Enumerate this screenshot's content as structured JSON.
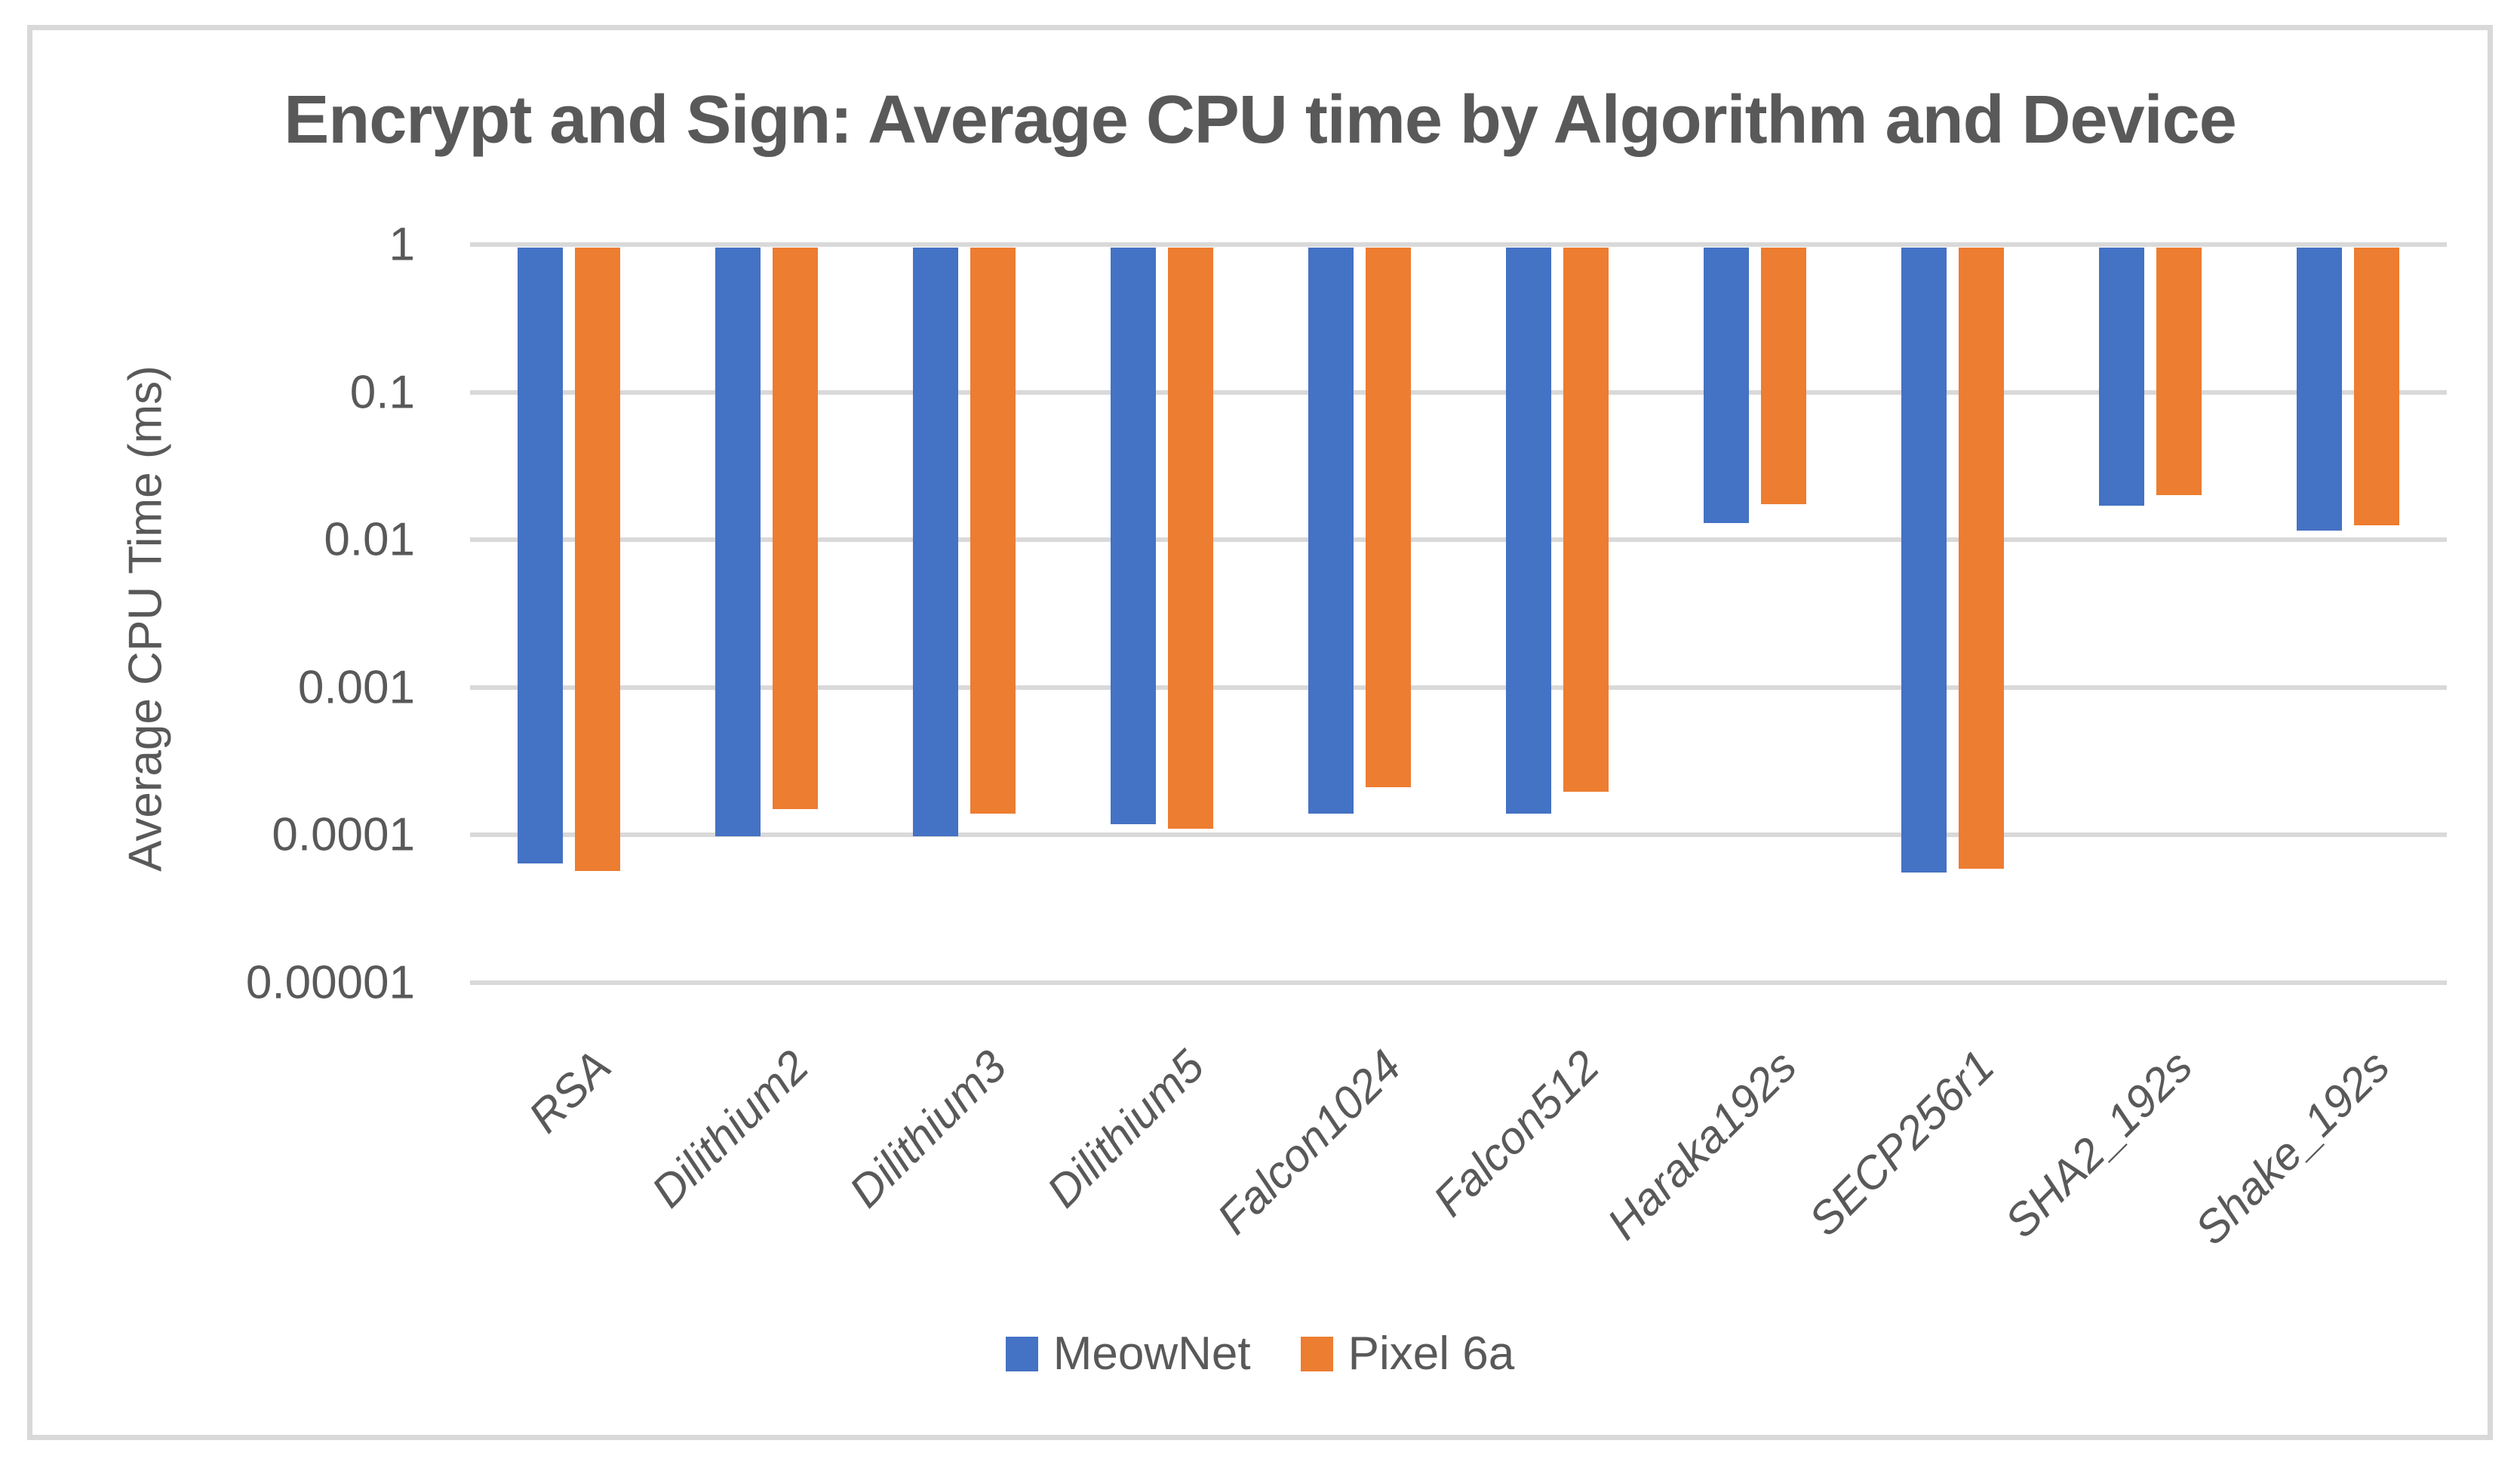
{
  "title": "Encrypt and Sign: Average CPU time by Algorithm and Device",
  "y_axis": {
    "title": "Average CPU Time (ms)",
    "tick_labels": [
      "1",
      "0.1",
      "0.01",
      "0.001",
      "0.0001",
      "0.00001"
    ]
  },
  "legend": {
    "items": [
      {
        "label": "MeowNet",
        "color": "#4472C4"
      },
      {
        "label": "Pixel 6a",
        "color": "#ED7D31"
      }
    ],
    "position": "bottom"
  },
  "colors": {
    "series_blue": "#4472C4",
    "series_orange": "#ED7D31",
    "gridline": "#D9D9D9",
    "text": "#595959",
    "frame_border": "#D9D9D9",
    "background": "#FFFFFF"
  },
  "chart_data": {
    "type": "bar",
    "title": "Encrypt and Sign: Average CPU time by Algorithm and Device",
    "xlabel": "",
    "ylabel": "Average CPU Time (ms)",
    "y_scale": "log",
    "ylim": [
      1e-05,
      1
    ],
    "bar_base": 1,
    "grid": true,
    "legend_position": "bottom",
    "categories": [
      "RSA",
      "Dilithium2",
      "Dilithium3",
      "Dilithium5",
      "Falcon1024",
      "Falcon512",
      "Haraka192s",
      "SECP256r1",
      "SHA2_192s",
      "Shake_192s"
    ],
    "series": [
      {
        "name": "MeowNet",
        "color": "#4472C4",
        "values": [
          6.4e-05,
          9.8e-05,
          9.8e-05,
          0.000118,
          0.00014,
          0.00014,
          0.013,
          5.6e-05,
          0.017,
          0.0115
        ]
      },
      {
        "name": "Pixel 6a",
        "color": "#ED7D31",
        "values": [
          5.7e-05,
          0.00015,
          0.00014,
          0.00011,
          0.00021,
          0.000197,
          0.0175,
          5.9e-05,
          0.02,
          0.0125
        ]
      }
    ]
  }
}
